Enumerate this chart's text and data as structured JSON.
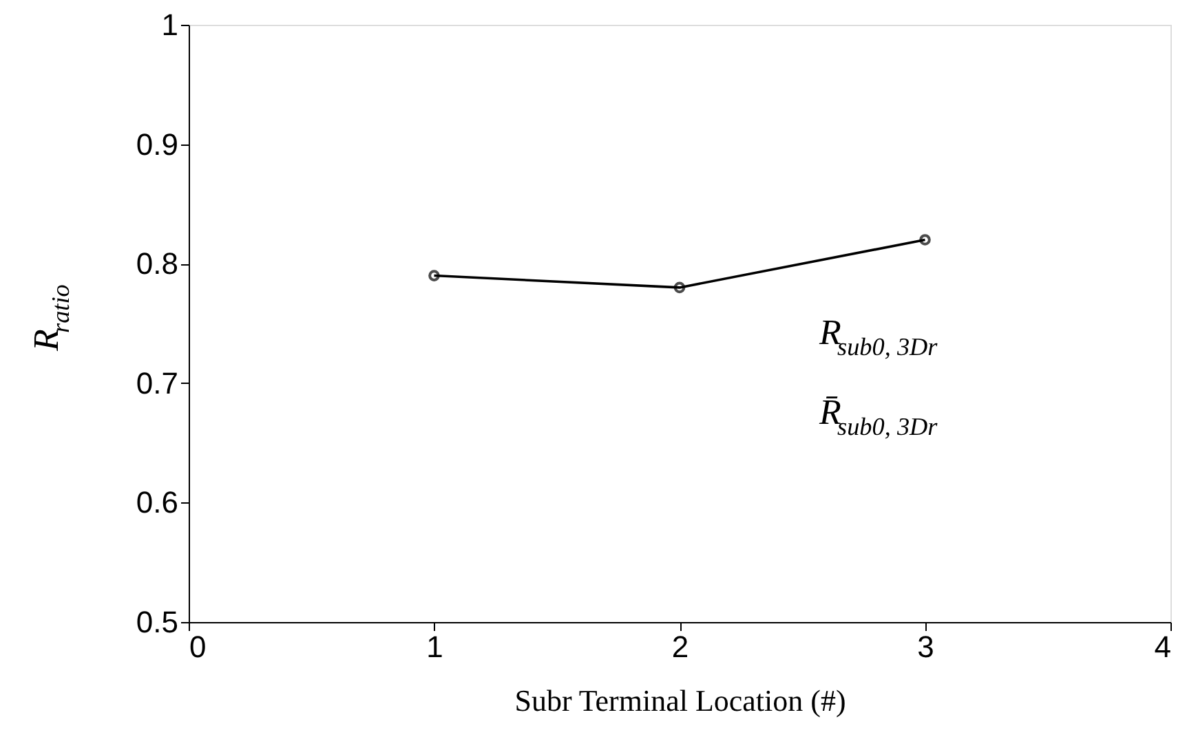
{
  "chart_data": {
    "type": "line",
    "xlabel": "Subr Terminal Location (#)",
    "ylabel": "R$_{ratio}$",
    "x": [
      1,
      2,
      3
    ],
    "series": [
      {
        "color": "#000000",
        "values": [
          0.79,
          0.78,
          0.82
        ]
      }
    ],
    "xlim": [
      0,
      4
    ],
    "xticks": [
      0,
      1,
      2,
      3,
      4
    ],
    "ylim": [
      0.5,
      1
    ],
    "yticks": [
      0.5,
      0.6,
      0.7,
      0.8,
      0.9,
      1
    ],
    "marker": "circle",
    "line_style": "solid",
    "grid": false,
    "annotations": [
      "R$_{sub0, 3Dr}$",
      "R̄$_{sub0, 3Dr}$"
    ]
  }
}
